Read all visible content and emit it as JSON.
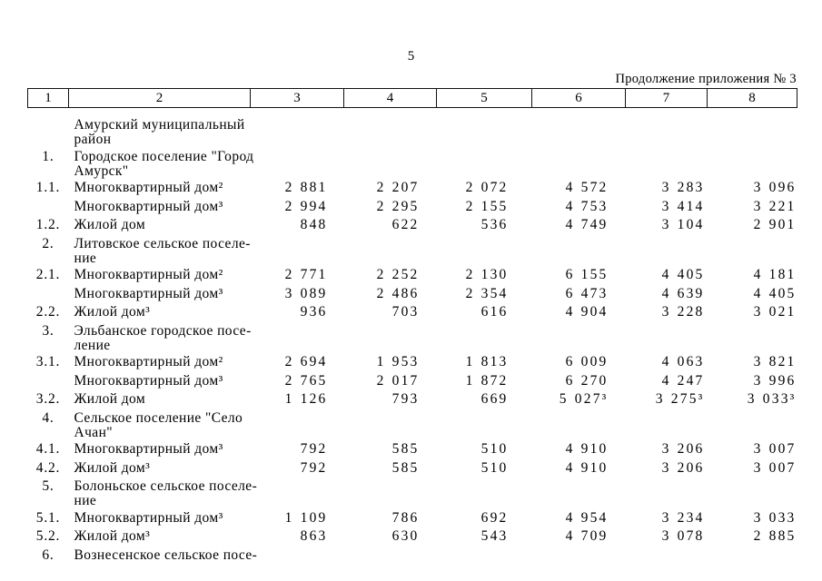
{
  "page": {
    "number": "5",
    "continuation": "Продолжение приложения № 3"
  },
  "table": {
    "header": [
      "1",
      "2",
      "3",
      "4",
      "5",
      "6",
      "7",
      "8"
    ],
    "rows": [
      {
        "type": "section",
        "num": "",
        "label": "Амурский муниципальный\nрайон"
      },
      {
        "type": "section",
        "num": "1.",
        "label": "Городское поселение \"Город\nАмурск\""
      },
      {
        "type": "data",
        "num": "1.1.",
        "label": "Многоквартирный дом²",
        "values": [
          "2 881",
          "2 207",
          "2 072",
          "4 572",
          "3 283",
          "3 096"
        ]
      },
      {
        "type": "data",
        "num": "",
        "label": "Многоквартирный дом³",
        "values": [
          "2 994",
          "2 295",
          "2 155",
          "4 753",
          "3 414",
          "3 221"
        ]
      },
      {
        "type": "data",
        "num": "1.2.",
        "label": "Жилой дом",
        "values": [
          "848",
          "622",
          "536",
          "4 749",
          "3 104",
          "2 901"
        ]
      },
      {
        "type": "section",
        "num": "2.",
        "label": "Литовское сельское поселе-\nние"
      },
      {
        "type": "data",
        "num": "2.1.",
        "label": "Многоквартирный дом²",
        "values": [
          "2 771",
          "2 252",
          "2 130",
          "6 155",
          "4 405",
          "4 181"
        ]
      },
      {
        "type": "data",
        "num": "",
        "label": "Многоквартирный дом³",
        "values": [
          "3 089",
          "2 486",
          "2 354",
          "6 473",
          "4 639",
          "4 405"
        ]
      },
      {
        "type": "data",
        "num": "2.2.",
        "label": "Жилой дом³",
        "values": [
          "936",
          "703",
          "616",
          "4 904",
          "3 228",
          "3 021"
        ]
      },
      {
        "type": "section",
        "num": "3.",
        "label": "Эльбанское городское посе-\nление"
      },
      {
        "type": "data",
        "num": "3.1.",
        "label": "Многоквартирный дом²",
        "values": [
          "2 694",
          "1 953",
          "1 813",
          "6 009",
          "4 063",
          "3 821"
        ]
      },
      {
        "type": "data",
        "num": "",
        "label": "Многоквартирный дом³",
        "values": [
          "2 765",
          "2 017",
          "1 872",
          "6 270",
          "4 247",
          "3 996"
        ]
      },
      {
        "type": "data",
        "num": "3.2.",
        "label": "Жилой дом",
        "values": [
          "1 126",
          "793",
          "669",
          "5 027³",
          "3 275³",
          "3 033³"
        ]
      },
      {
        "type": "section",
        "num": "4.",
        "label": "Сельское поселение \"Село\nАчан\""
      },
      {
        "type": "data",
        "num": "4.1.",
        "label": "Многоквартирный дом³",
        "values": [
          "792",
          "585",
          "510",
          "4 910",
          "3 206",
          "3 007"
        ]
      },
      {
        "type": "data",
        "num": "4.2.",
        "label": "Жилой дом³",
        "values": [
          "792",
          "585",
          "510",
          "4 910",
          "3 206",
          "3 007"
        ]
      },
      {
        "type": "section",
        "num": "5.",
        "label": "Болоньское сельское поселе-\nние"
      },
      {
        "type": "data",
        "num": "5.1.",
        "label": "Многоквартирный дом³",
        "values": [
          "1 109",
          "786",
          "692",
          "4 954",
          "3 234",
          "3 033"
        ]
      },
      {
        "type": "data",
        "num": "5.2.",
        "label": "Жилой дом³",
        "values": [
          "863",
          "630",
          "543",
          "4 709",
          "3 078",
          "2 885"
        ]
      },
      {
        "type": "section",
        "num": "6.",
        "label": "Вознесенское сельское посе-"
      }
    ]
  }
}
